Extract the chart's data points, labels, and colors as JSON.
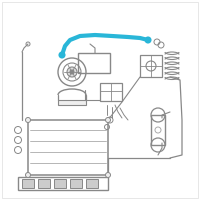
{
  "background_color": "#ffffff",
  "highlight_color": "#29b6d8",
  "line_color": "#aaaaaa",
  "dark_line": "#888888",
  "fig_width": 2.0,
  "fig_height": 2.0,
  "dpi": 100,
  "border_color": "#dddddd",
  "component_color": "#999999"
}
